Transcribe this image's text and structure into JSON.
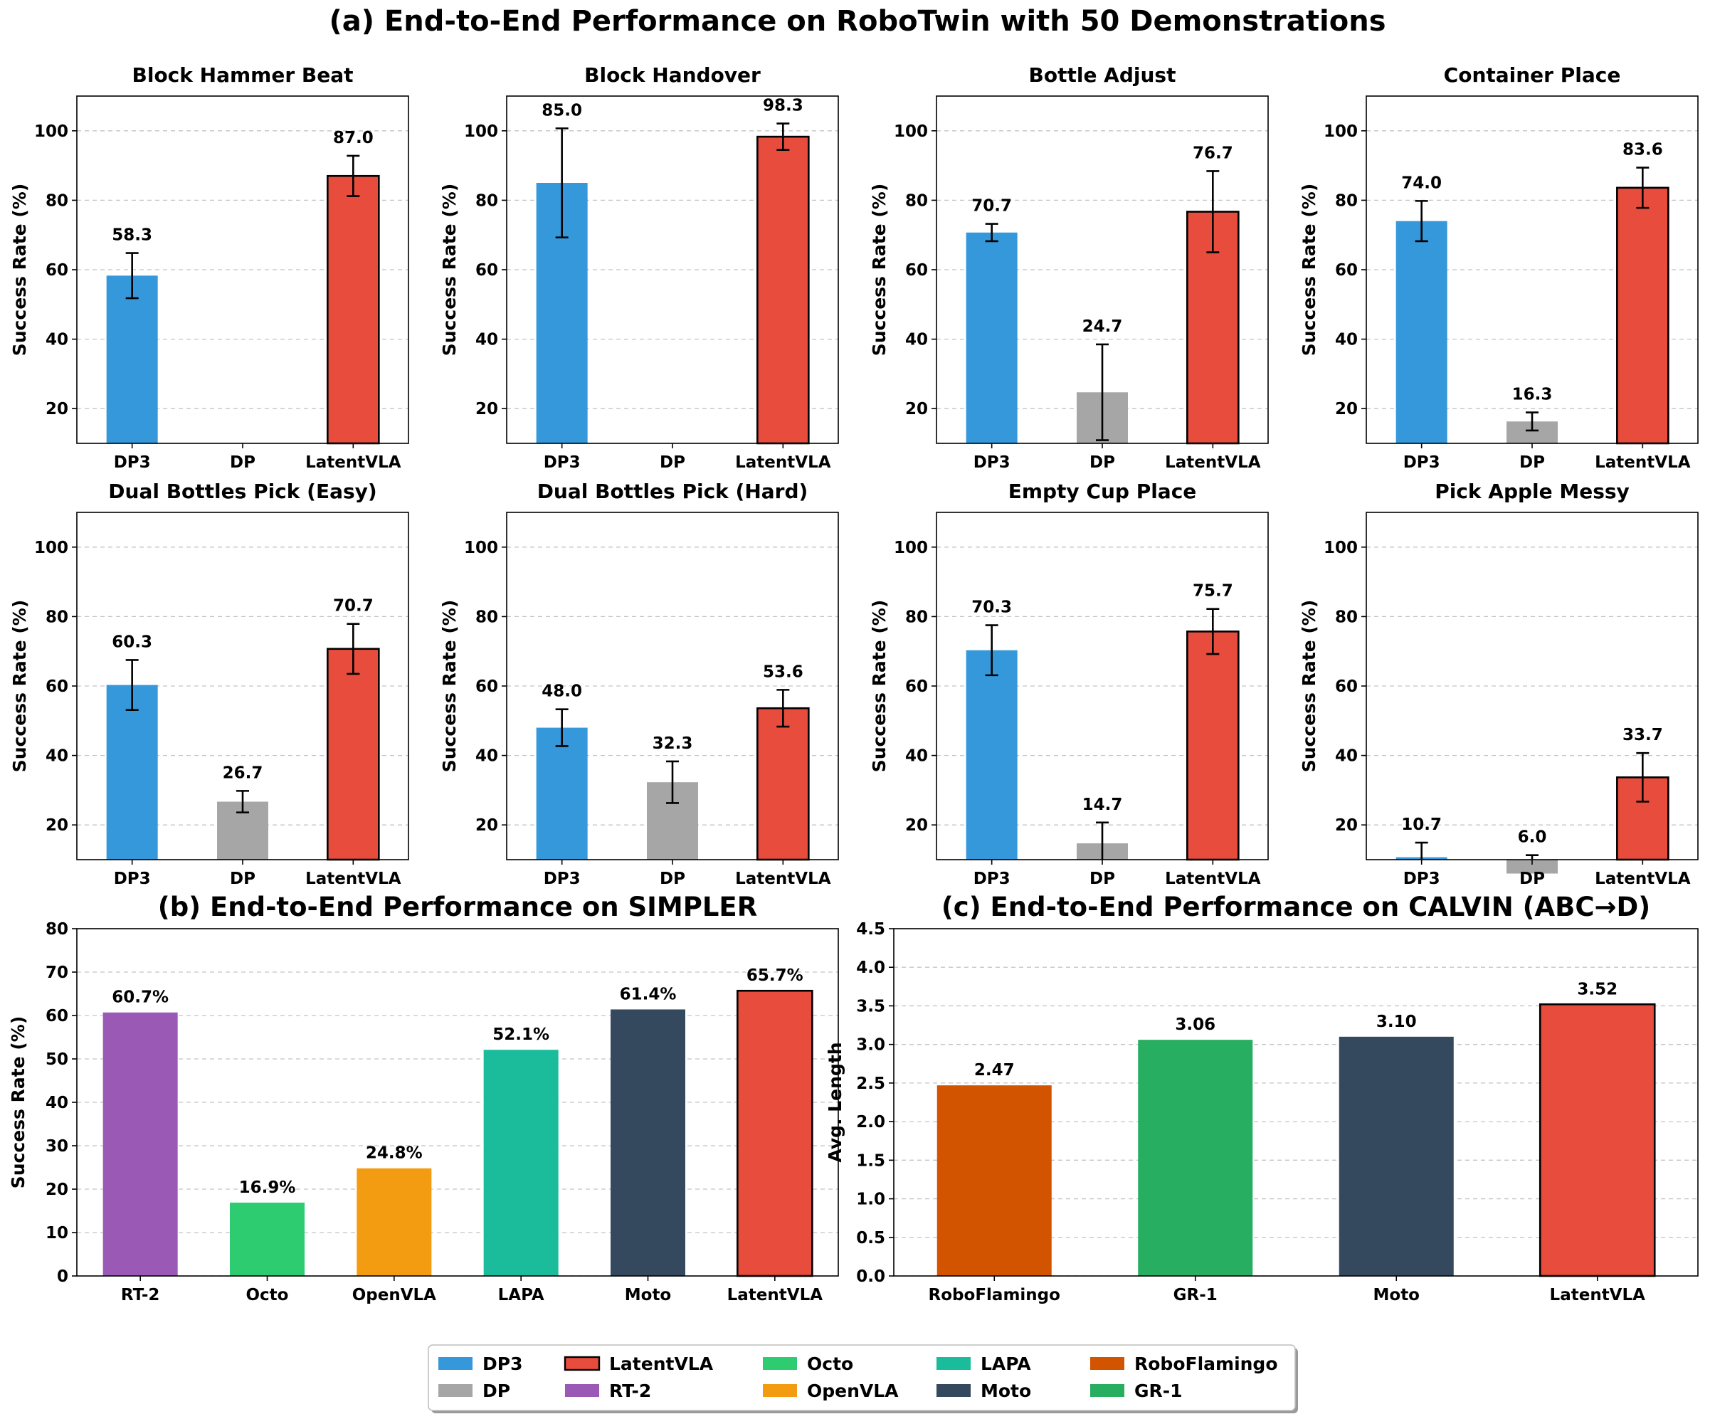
{
  "figure_title": "(a) End-to-End Performance on RoboTwin with 50 Demonstrations",
  "colors": {
    "DP3": "#3498db",
    "DP": "#a6a6a6",
    "LatentVLA": "#e74c3c",
    "RT-2": "#9b59b6",
    "Octo": "#2ecc71",
    "OpenVLA": "#f39c12",
    "LAPA": "#1abc9c",
    "Moto": "#34495e",
    "RoboFlamingo": "#d35400",
    "GR-1": "#27ae60"
  },
  "legend": {
    "entries": [
      "DP3",
      "DP",
      "LatentVLA",
      "RT-2",
      "Octo",
      "OpenVLA",
      "LAPA",
      "Moto",
      "RoboFlamingo",
      "GR-1"
    ],
    "placement": "bottom-center"
  },
  "chart_data": [
    {
      "id": "block-hammer-beat",
      "type": "bar",
      "title": "Block Hammer Beat",
      "ylabel": "Success Rate (%)",
      "ylim": [
        10,
        110
      ],
      "yticks": [
        20,
        40,
        60,
        80,
        100
      ],
      "grid": true,
      "categories": [
        "DP3",
        "DP",
        "LatentVLA"
      ],
      "values": [
        58.3,
        null,
        87.0
      ],
      "errors": [
        6.5,
        null,
        5.8
      ],
      "value_labels": [
        "58.3",
        "",
        "87.0"
      ]
    },
    {
      "id": "block-handover",
      "type": "bar",
      "title": "Block Handover",
      "ylabel": "Success Rate (%)",
      "ylim": [
        10,
        110
      ],
      "yticks": [
        20,
        40,
        60,
        80,
        100
      ],
      "grid": true,
      "categories": [
        "DP3",
        "DP",
        "LatentVLA"
      ],
      "values": [
        85.0,
        null,
        98.3
      ],
      "errors": [
        15.7,
        null,
        3.8
      ],
      "value_labels": [
        "85.0",
        "",
        "98.3"
      ]
    },
    {
      "id": "bottle-adjust",
      "type": "bar",
      "title": "Bottle Adjust",
      "ylabel": "Success Rate (%)",
      "ylim": [
        10,
        110
      ],
      "yticks": [
        20,
        40,
        60,
        80,
        100
      ],
      "grid": true,
      "categories": [
        "DP3",
        "DP",
        "LatentVLA"
      ],
      "values": [
        70.7,
        24.7,
        76.7
      ],
      "errors": [
        2.5,
        13.8,
        11.7
      ],
      "value_labels": [
        "70.7",
        "24.7",
        "76.7"
      ]
    },
    {
      "id": "container-place",
      "type": "bar",
      "title": "Container Place",
      "ylabel": "Success Rate (%)",
      "ylim": [
        10,
        110
      ],
      "yticks": [
        20,
        40,
        60,
        80,
        100
      ],
      "grid": true,
      "categories": [
        "DP3",
        "DP",
        "LatentVLA"
      ],
      "values": [
        74.0,
        16.3,
        83.6
      ],
      "errors": [
        5.8,
        2.6,
        5.8
      ],
      "value_labels": [
        "74.0",
        "16.3",
        "83.6"
      ]
    },
    {
      "id": "dual-bottles-pick-easy",
      "type": "bar",
      "title": "Dual Bottles Pick (Easy)",
      "ylabel": "Success Rate (%)",
      "ylim": [
        10,
        110
      ],
      "yticks": [
        20,
        40,
        60,
        80,
        100
      ],
      "grid": true,
      "categories": [
        "DP3",
        "DP",
        "LatentVLA"
      ],
      "values": [
        60.3,
        26.7,
        70.7
      ],
      "errors": [
        7.2,
        3.1,
        7.2
      ],
      "value_labels": [
        "60.3",
        "26.7",
        "70.7"
      ]
    },
    {
      "id": "dual-bottles-pick-hard",
      "type": "bar",
      "title": "Dual Bottles Pick (Hard)",
      "ylabel": "Success Rate (%)",
      "ylim": [
        10,
        110
      ],
      "yticks": [
        20,
        40,
        60,
        80,
        100
      ],
      "grid": true,
      "categories": [
        "DP3",
        "DP",
        "LatentVLA"
      ],
      "values": [
        48.0,
        32.3,
        53.6
      ],
      "errors": [
        5.3,
        6.0,
        5.3
      ],
      "value_labels": [
        "48.0",
        "32.3",
        "53.6"
      ]
    },
    {
      "id": "empty-cup-place",
      "type": "bar",
      "title": "Empty Cup Place",
      "ylabel": "Success Rate (%)",
      "ylim": [
        10,
        110
      ],
      "yticks": [
        20,
        40,
        60,
        80,
        100
      ],
      "grid": true,
      "categories": [
        "DP3",
        "DP",
        "LatentVLA"
      ],
      "values": [
        70.3,
        14.7,
        75.7
      ],
      "errors": [
        7.2,
        6.0,
        6.5
      ],
      "value_labels": [
        "70.3",
        "14.7",
        "75.7"
      ]
    },
    {
      "id": "pick-apple-messy",
      "type": "bar",
      "title": "Pick Apple Messy",
      "ylabel": "Success Rate (%)",
      "ylim": [
        10,
        110
      ],
      "yticks": [
        20,
        40,
        60,
        80,
        100
      ],
      "grid": true,
      "categories": [
        "DP3",
        "DP",
        "LatentVLA"
      ],
      "values": [
        10.7,
        6.0,
        33.7
      ],
      "errors": [
        4.2,
        5.3,
        7.0
      ],
      "value_labels": [
        "10.7",
        "6.0",
        "33.7"
      ]
    },
    {
      "id": "simpler",
      "type": "bar",
      "title": "(b) End-to-End Performance on SIMPLER",
      "ylabel": "Success Rate (%)",
      "ylim": [
        0,
        80
      ],
      "yticks": [
        0,
        10,
        20,
        30,
        40,
        50,
        60,
        70,
        80
      ],
      "grid": true,
      "categories": [
        "RT-2",
        "Octo",
        "OpenVLA",
        "LAPA",
        "Moto",
        "LatentVLA"
      ],
      "values": [
        60.7,
        16.9,
        24.8,
        52.1,
        61.4,
        65.7
      ],
      "errors": null,
      "value_labels": [
        "60.7%",
        "16.9%",
        "24.8%",
        "52.1%",
        "61.4%",
        "65.7%"
      ]
    },
    {
      "id": "calvin",
      "type": "bar",
      "title": "(c) End-to-End Performance on CALVIN (ABC→D)",
      "ylabel": "Avg. Length",
      "ylim": [
        0,
        4.5
      ],
      "yticks": [
        "0.0",
        "0.5",
        "1.0",
        "1.5",
        "2.0",
        "2.5",
        "3.0",
        "3.5",
        "4.0",
        "4.5"
      ],
      "grid": true,
      "categories": [
        "RoboFlamingo",
        "GR-1",
        "Moto",
        "LatentVLA"
      ],
      "values": [
        2.47,
        3.06,
        3.1,
        3.52
      ],
      "errors": null,
      "value_labels": [
        "2.47",
        "3.06",
        "3.10",
        "3.52"
      ]
    }
  ]
}
